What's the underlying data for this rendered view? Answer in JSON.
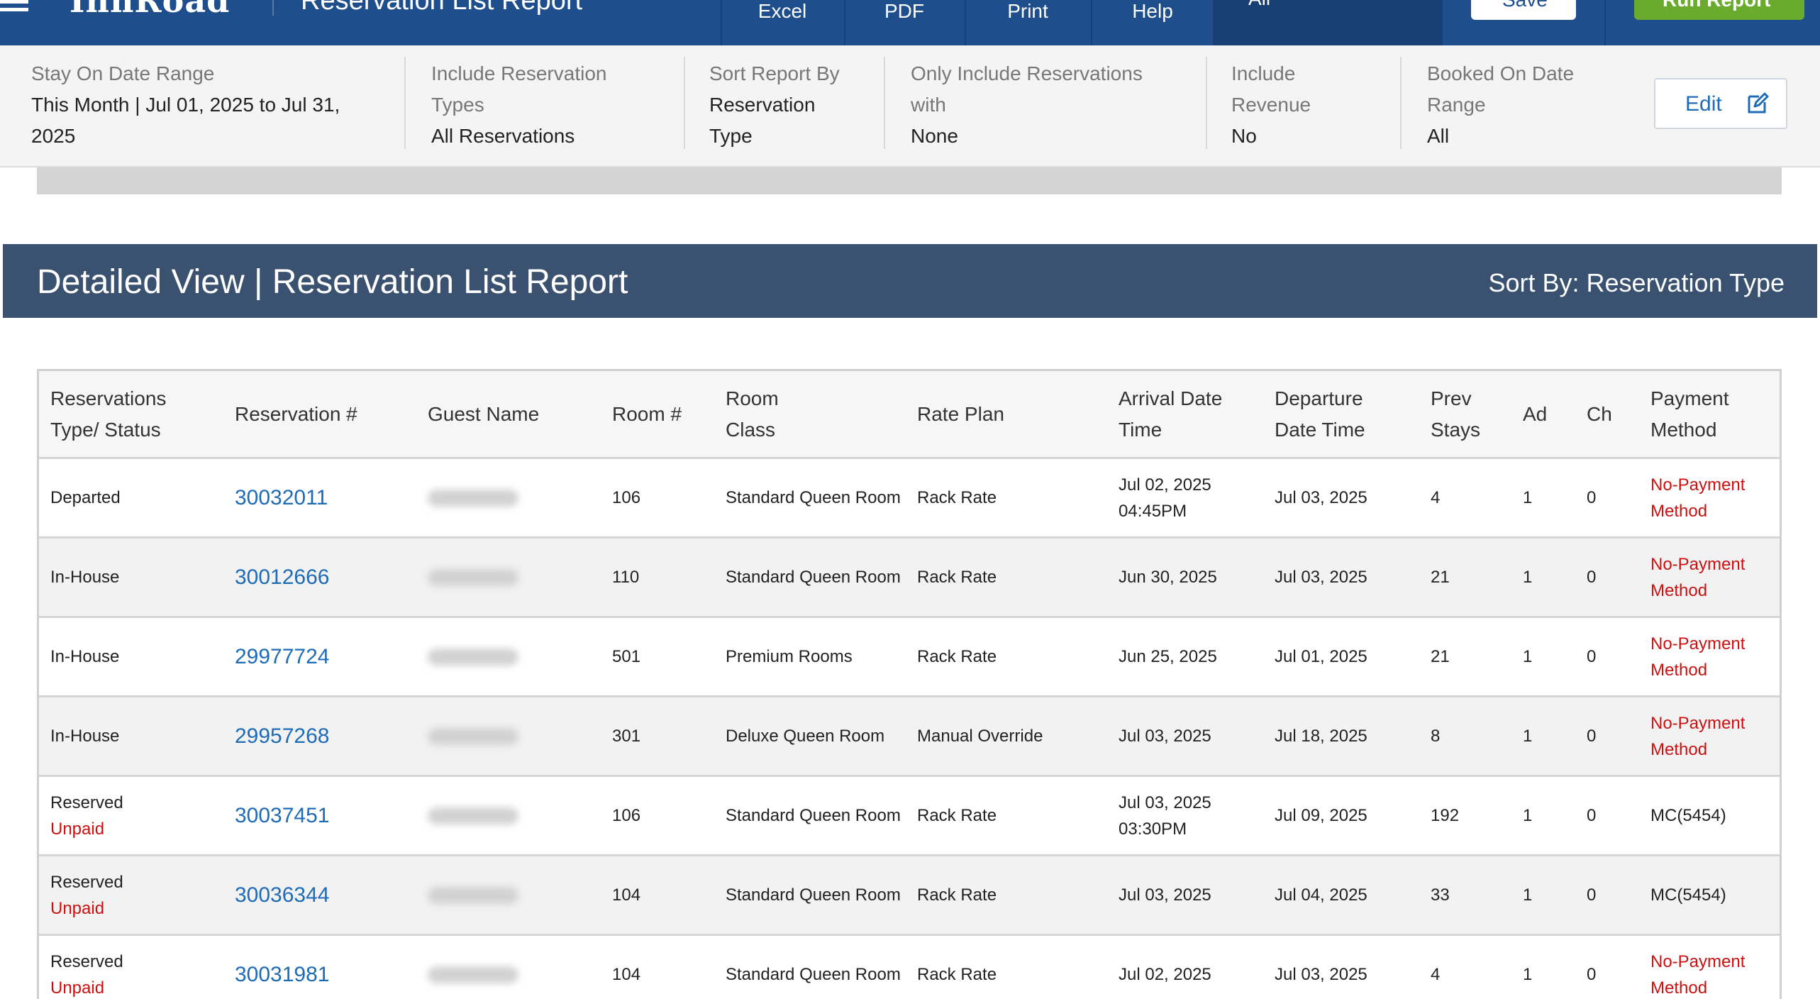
{
  "header": {
    "brand": "InnRoad",
    "title": "Reservation List Report",
    "nav": [
      "Excel",
      "PDF",
      "Print",
      "Help"
    ],
    "property_select": "All",
    "save_label": "Save",
    "run_label": "Run Report"
  },
  "filters": [
    {
      "label": "Stay On Date Range",
      "value": "This Month | Jul 01, 2025 to Jul 31, 2025"
    },
    {
      "label": "Include Reservation Types",
      "value": "All Reservations"
    },
    {
      "label": "Sort Report By",
      "value": "Reservation Type"
    },
    {
      "label": "Only Include Reservations with",
      "value": "None"
    },
    {
      "label": "Include Revenue",
      "value": "No"
    },
    {
      "label": "Booked On Date Range",
      "value": "All"
    }
  ],
  "edit_label": "Edit",
  "banner": {
    "title": "Detailed View | Reservation List Report",
    "sort": "Sort By: Reservation Type"
  },
  "table": {
    "columns": [
      "Reservations Type/ Status",
      "Reservation #",
      "Guest Name",
      "Room #",
      "Room Class",
      "Rate Plan",
      "Arrival Date Time",
      "Departure Date Time",
      "Prev Stays",
      "Ad",
      "Ch",
      "Payment Method"
    ],
    "rows": [
      {
        "status": "Departed",
        "sub": "",
        "res": "30032011",
        "room": "106",
        "class": "Standard Queen Room",
        "rate": "Rack Rate",
        "arr": "Jul 02, 2025",
        "arr_time": "04:45PM",
        "dep": "Jul 03, 2025",
        "prev": "4",
        "ad": "1",
        "ch": "0",
        "payment": "No-Payment Method",
        "payment_missing": true
      },
      {
        "status": "In-House",
        "sub": "",
        "res": "30012666",
        "room": "110",
        "class": "Standard Queen Room",
        "rate": "Rack Rate",
        "arr": "Jun 30, 2025",
        "arr_time": "",
        "dep": "Jul 03, 2025",
        "prev": "21",
        "ad": "1",
        "ch": "0",
        "payment": "No-Payment Method",
        "payment_missing": true
      },
      {
        "status": "In-House",
        "sub": "",
        "res": "29977724",
        "room": "501",
        "class": "Premium Rooms",
        "rate": "Rack Rate",
        "arr": "Jun 25, 2025",
        "arr_time": "",
        "dep": "Jul 01, 2025",
        "prev": "21",
        "ad": "1",
        "ch": "0",
        "payment": "No-Payment Method",
        "payment_missing": true
      },
      {
        "status": "In-House",
        "sub": "",
        "res": "29957268",
        "room": "301",
        "class": "Deluxe Queen Room",
        "rate": "Manual Override",
        "arr": "Jul 03, 2025",
        "arr_time": "",
        "dep": "Jul 18, 2025",
        "prev": "8",
        "ad": "1",
        "ch": "0",
        "payment": "No-Payment Method",
        "payment_missing": true
      },
      {
        "status": "Reserved",
        "sub": "Unpaid",
        "res": "30037451",
        "room": "106",
        "class": "Standard Queen Room",
        "rate": "Rack Rate",
        "arr": "Jul 03, 2025",
        "arr_time": "03:30PM",
        "dep": "Jul 09, 2025",
        "prev": "192",
        "ad": "1",
        "ch": "0",
        "payment": "MC(5454)",
        "payment_missing": false
      },
      {
        "status": "Reserved",
        "sub": "Unpaid",
        "res": "30036344",
        "room": "104",
        "class": "Standard Queen Room",
        "rate": "Rack Rate",
        "arr": "Jul 03, 2025",
        "arr_time": "",
        "dep": "Jul 04, 2025",
        "prev": "33",
        "ad": "1",
        "ch": "0",
        "payment": "MC(5454)",
        "payment_missing": false
      },
      {
        "status": "Reserved",
        "sub": "Unpaid",
        "res": "30031981",
        "room": "104",
        "class": "Standard Queen Room",
        "rate": "Rack Rate",
        "arr": "Jul 02, 2025",
        "arr_time": "",
        "dep": "Jul 03, 2025",
        "prev": "4",
        "ad": "1",
        "ch": "0",
        "payment": "No-Payment Method",
        "payment_missing": true
      }
    ]
  },
  "colors": {
    "header_bg": "#1f4e8c",
    "banner_bg": "#3a5170",
    "link": "#1e6bb8",
    "alert": "#cc1111",
    "run_button": "#6aaa2c"
  },
  "icons": [
    "hamburger-icon",
    "edit-icon"
  ]
}
